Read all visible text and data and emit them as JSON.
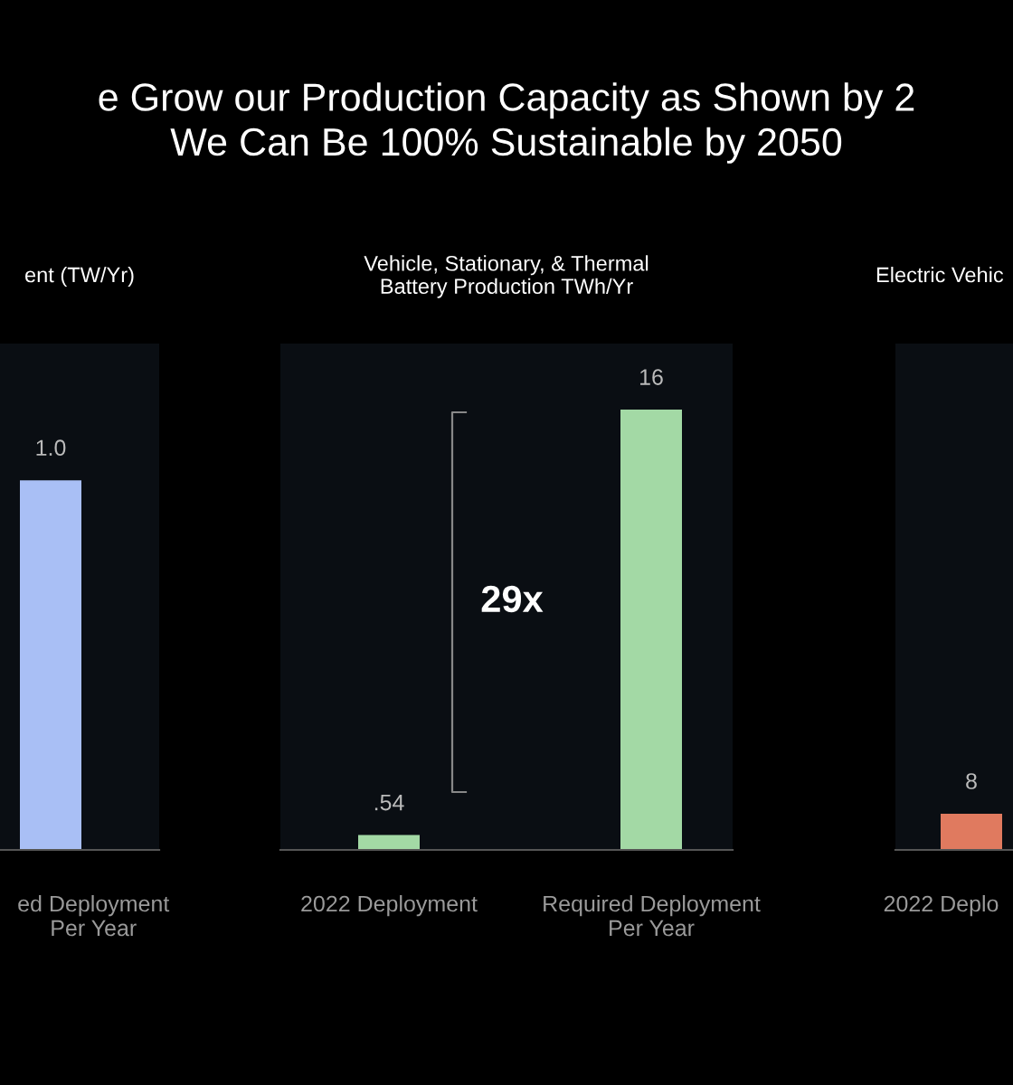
{
  "chart_data": [
    {
      "type": "other",
      "title": "e Grow our Production Capacity as Shown by 2\nWe Can Be 100% Sustainable by 2050"
    },
    {
      "type": "bar",
      "title": "ent (TW/Yr)",
      "categories": [
        "ed Deployment\nPer Year"
      ],
      "values": [
        1.0
      ],
      "value_labels": [
        "1.0"
      ],
      "color": "#a9bff5"
    },
    {
      "type": "bar",
      "title": "Vehicle, Stationary, & Thermal\nBattery Production TWh/Yr",
      "categories": [
        "2022 Deployment",
        "Required Deployment\nPer Year"
      ],
      "values": [
        0.54,
        16
      ],
      "value_labels": [
        ".54",
        "16"
      ],
      "color": "#a3d9a5",
      "annotations": [
        "29x"
      ]
    },
    {
      "type": "bar",
      "title": "Electric Vehic",
      "categories": [
        "2022 Deplo"
      ],
      "values": [
        8
      ],
      "data_labels": true,
      "color": "#e07a5f"
    }
  ]
}
